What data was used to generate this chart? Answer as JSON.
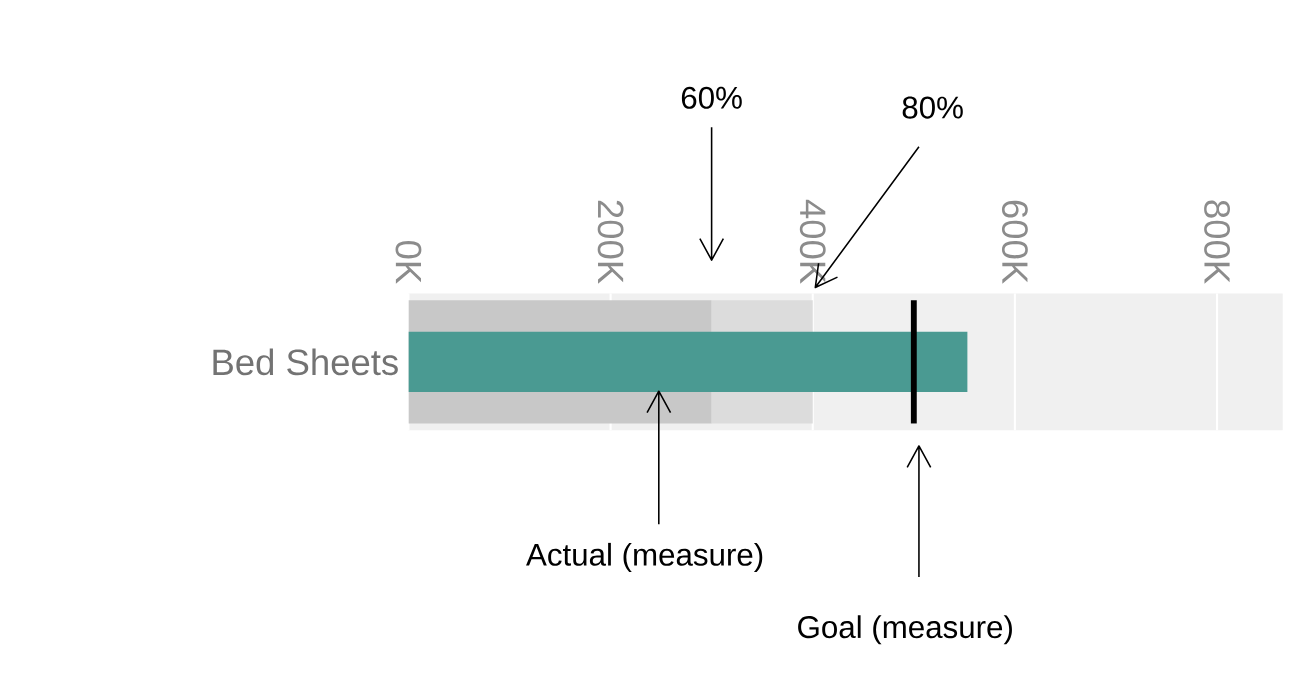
{
  "chart_data": {
    "type": "bar",
    "orientation": "horizontal",
    "categories": [
      "Bed Sheets"
    ],
    "series": [
      {
        "color": "#4a9a92",
        "values": [
          553
        ]
      }
    ],
    "xlim": [
      0,
      865
    ],
    "xticks": [
      {
        "value": 0,
        "label": "0K"
      },
      {
        "value": 200,
        "label": "200K"
      },
      {
        "value": 400,
        "label": "400K"
      },
      {
        "value": 600,
        "label": "600K"
      },
      {
        "value": 800,
        "label": "800K"
      }
    ],
    "grid": "x",
    "bands": [
      {
        "axis": "x",
        "from": 0,
        "to": 300,
        "color": "#c8c8c8"
      },
      {
        "axis": "x",
        "from": 300,
        "to": 400,
        "color": "#dcdcdc"
      }
    ],
    "ref_lines": [
      {
        "axis": "x",
        "value": 500,
        "color": "#000000"
      }
    ],
    "annotations": [
      "60%",
      "80%",
      "Actual (measure)",
      "Goal (measure)"
    ]
  }
}
